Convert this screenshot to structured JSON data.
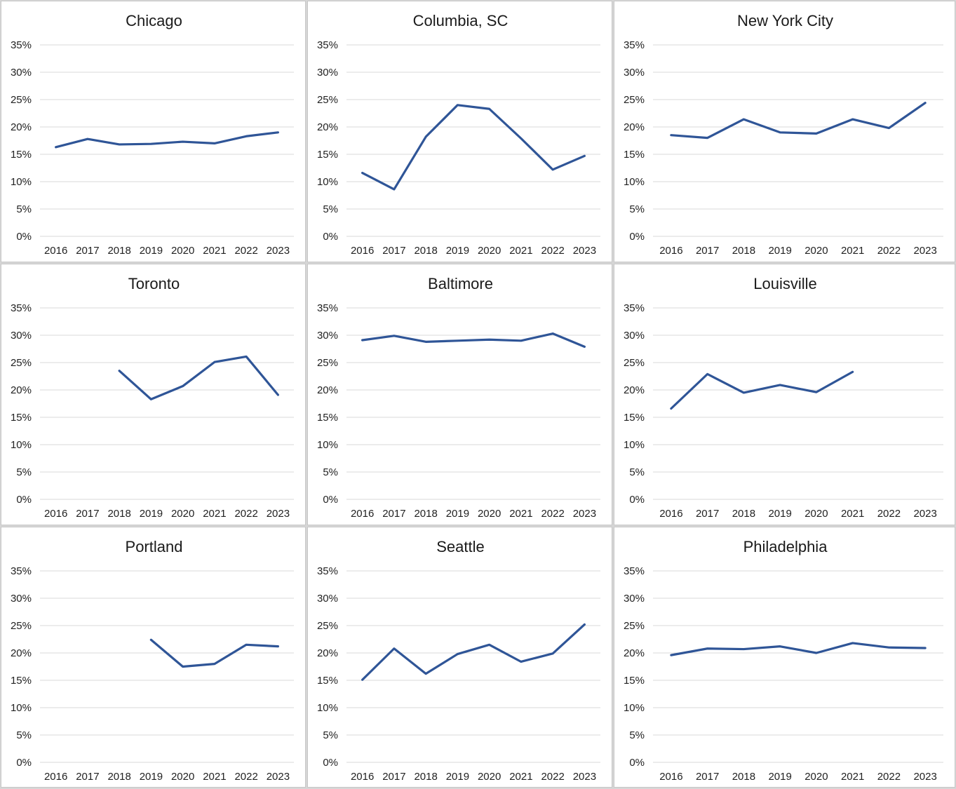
{
  "colors": {
    "series": "#2f5597",
    "grid": "#d9d9d9",
    "background": "#ffffff"
  },
  "chart_data": [
    {
      "type": "line",
      "title": "Chicago",
      "x": [
        "2016",
        "2017",
        "2018",
        "2019",
        "2020",
        "2021",
        "2022",
        "2023"
      ],
      "y_ticks": [
        "0%",
        "5%",
        "10%",
        "15%",
        "20%",
        "25%",
        "30%",
        "35%"
      ],
      "ylim": [
        0,
        35
      ],
      "grid": true,
      "series": [
        {
          "values": [
            16.3,
            17.8,
            16.8,
            16.9,
            17.3,
            17.0,
            18.3,
            19.0
          ]
        }
      ]
    },
    {
      "type": "line",
      "title": "Columbia, SC",
      "x": [
        "2016",
        "2017",
        "2018",
        "2019",
        "2020",
        "2021",
        "2022",
        "2023"
      ],
      "y_ticks": [
        "0%",
        "5%",
        "10%",
        "15%",
        "20%",
        "25%",
        "30%",
        "35%"
      ],
      "ylim": [
        0,
        35
      ],
      "grid": true,
      "series": [
        {
          "values": [
            11.6,
            8.6,
            18.2,
            24.0,
            23.3,
            17.9,
            12.2,
            14.7
          ]
        }
      ]
    },
    {
      "type": "line",
      "title": "New York City",
      "x": [
        "2016",
        "2017",
        "2018",
        "2019",
        "2020",
        "2021",
        "2022",
        "2023"
      ],
      "y_ticks": [
        "0%",
        "5%",
        "10%",
        "15%",
        "20%",
        "25%",
        "30%",
        "35%"
      ],
      "ylim": [
        0,
        35
      ],
      "grid": true,
      "series": [
        {
          "values": [
            18.5,
            18.0,
            21.4,
            19.0,
            18.8,
            21.4,
            19.8,
            24.4
          ]
        }
      ]
    },
    {
      "type": "line",
      "title": "Toronto",
      "x": [
        "2016",
        "2017",
        "2018",
        "2019",
        "2020",
        "2021",
        "2022",
        "2023"
      ],
      "y_ticks": [
        "0%",
        "5%",
        "10%",
        "15%",
        "20%",
        "25%",
        "30%",
        "35%"
      ],
      "ylim": [
        0,
        35
      ],
      "grid": true,
      "series": [
        {
          "values": [
            null,
            null,
            23.5,
            18.3,
            20.7,
            25.1,
            26.1,
            19.1
          ]
        }
      ]
    },
    {
      "type": "line",
      "title": "Baltimore",
      "x": [
        "2016",
        "2017",
        "2018",
        "2019",
        "2020",
        "2021",
        "2022",
        "2023"
      ],
      "y_ticks": [
        "0%",
        "5%",
        "10%",
        "15%",
        "20%",
        "25%",
        "30%",
        "35%"
      ],
      "ylim": [
        0,
        35
      ],
      "grid": true,
      "series": [
        {
          "values": [
            29.1,
            29.9,
            28.8,
            29.0,
            29.2,
            29.0,
            30.3,
            27.9
          ]
        }
      ]
    },
    {
      "type": "line",
      "title": "Louisville",
      "x": [
        "2016",
        "2017",
        "2018",
        "2019",
        "2020",
        "2021",
        "2022",
        "2023"
      ],
      "y_ticks": [
        "0%",
        "5%",
        "10%",
        "15%",
        "20%",
        "25%",
        "30%",
        "35%"
      ],
      "ylim": [
        0,
        35
      ],
      "grid": true,
      "series": [
        {
          "values": [
            16.6,
            22.9,
            19.5,
            20.9,
            19.6,
            23.3,
            null,
            null
          ]
        }
      ]
    },
    {
      "type": "line",
      "title": "Portland",
      "x": [
        "2016",
        "2017",
        "2018",
        "2019",
        "2020",
        "2021",
        "2022",
        "2023"
      ],
      "y_ticks": [
        "0%",
        "5%",
        "10%",
        "15%",
        "20%",
        "25%",
        "30%",
        "35%"
      ],
      "ylim": [
        0,
        35
      ],
      "grid": true,
      "series": [
        {
          "values": [
            null,
            null,
            null,
            22.4,
            17.5,
            18.0,
            21.5,
            21.2
          ]
        }
      ]
    },
    {
      "type": "line",
      "title": "Seattle",
      "x": [
        "2016",
        "2017",
        "2018",
        "2019",
        "2020",
        "2021",
        "2022",
        "2023"
      ],
      "y_ticks": [
        "0%",
        "5%",
        "10%",
        "15%",
        "20%",
        "25%",
        "30%",
        "35%"
      ],
      "ylim": [
        0,
        35
      ],
      "grid": true,
      "series": [
        {
          "values": [
            15.1,
            20.8,
            16.2,
            19.8,
            21.5,
            18.4,
            19.9,
            25.2
          ]
        }
      ]
    },
    {
      "type": "line",
      "title": "Philadelphia",
      "x": [
        "2016",
        "2017",
        "2018",
        "2019",
        "2020",
        "2021",
        "2022",
        "2023"
      ],
      "y_ticks": [
        "0%",
        "5%",
        "10%",
        "15%",
        "20%",
        "25%",
        "30%",
        "35%"
      ],
      "ylim": [
        0,
        35
      ],
      "grid": true,
      "series": [
        {
          "values": [
            19.6,
            20.8,
            20.7,
            21.2,
            20.0,
            21.8,
            21.0,
            20.9
          ]
        }
      ]
    }
  ]
}
